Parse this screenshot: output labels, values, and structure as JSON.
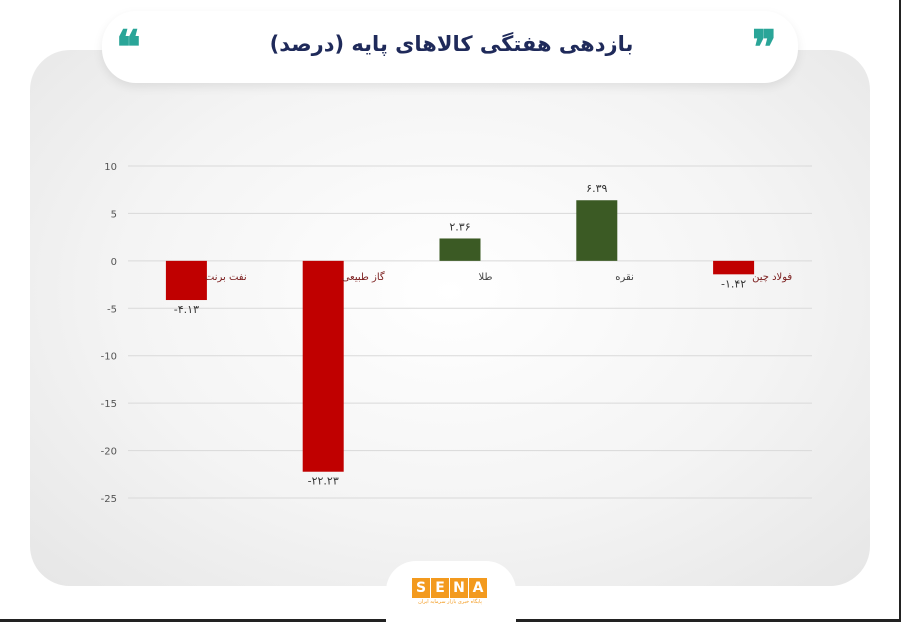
{
  "header": {
    "title": "بازدهی هفتگی کالاهای پایه (درصد)",
    "quote_open": "❝",
    "quote_close": "❞"
  },
  "colors": {
    "negative": "#c00000",
    "positive": "#3b5a24",
    "accent": "#2aa598",
    "title": "#1f2a5a",
    "logo": "#f39a1e"
  },
  "chart_data": {
    "type": "bar",
    "title": "بازدهی هفتگی کالاهای پایه (درصد)",
    "categories": [
      "نفت برنت",
      "گاز طبیعی",
      "طلا",
      "نقره",
      "فولاد چین"
    ],
    "values": [
      -4.13,
      -22.23,
      2.36,
      6.39,
      -1.42
    ],
    "value_labels": [
      "-۴.۱۳",
      "-۲۲.۲۳",
      "۲.۳۶",
      "۶.۳۹",
      "-۱.۴۲"
    ],
    "yticks": [
      10,
      5,
      0,
      -5,
      -10,
      -15,
      -20,
      -25
    ],
    "ytick_labels": [
      "10",
      "5",
      "0",
      "-5",
      "-10",
      "-15",
      "-20",
      "-25"
    ],
    "ylim": [
      -25,
      10
    ],
    "grid": true,
    "xlabel": "",
    "ylabel": ""
  },
  "logo": {
    "letters": [
      "S",
      "E",
      "N",
      "A"
    ],
    "subtitle": "پایگاه خبری بازار سرمایه ایران"
  }
}
